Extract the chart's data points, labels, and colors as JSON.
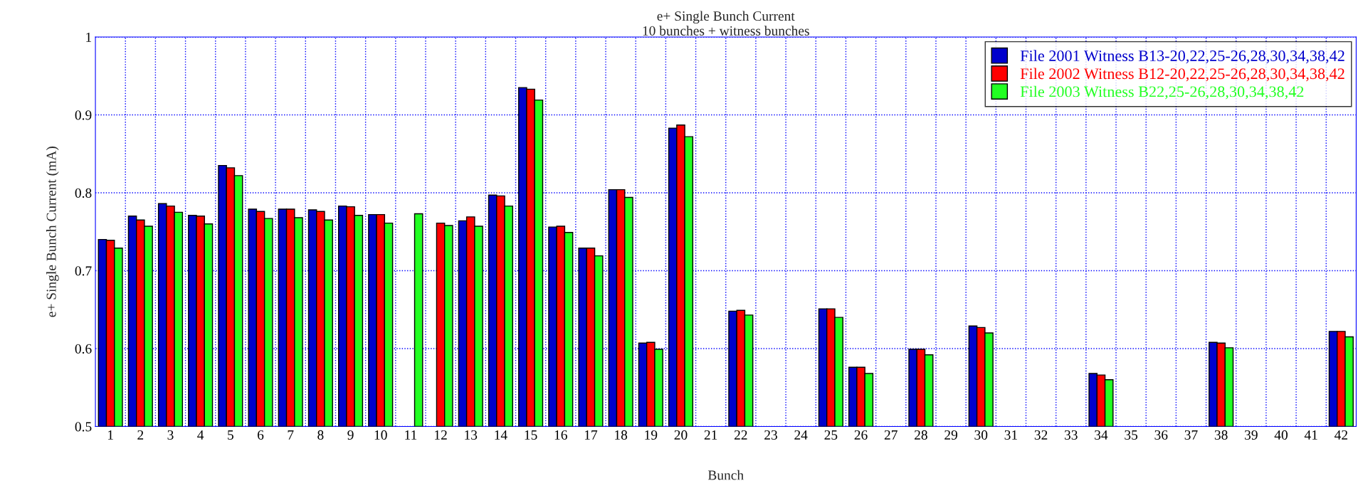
{
  "chart_data": {
    "type": "bar",
    "title": "e+ Single Bunch Current",
    "subtitle": "10 bunches + witness bunches",
    "xlabel": "Bunch",
    "ylabel": "e+ Single Bunch Current (mA)",
    "categories": [
      "1",
      "2",
      "3",
      "4",
      "5",
      "6",
      "7",
      "8",
      "9",
      "10",
      "11",
      "12",
      "13",
      "14",
      "15",
      "16",
      "17",
      "18",
      "19",
      "20",
      "21",
      "22",
      "23",
      "24",
      "25",
      "26",
      "27",
      "28",
      "29",
      "30",
      "31",
      "32",
      "33",
      "34",
      "35",
      "36",
      "37",
      "38",
      "39",
      "40",
      "41",
      "42"
    ],
    "series": [
      {
        "name": "File 2001 Witness B13-20,22,25-26,28,30,34,38,42",
        "color": "#0000cc",
        "values": [
          0.74,
          0.77,
          0.786,
          0.771,
          0.835,
          0.779,
          0.779,
          0.778,
          0.783,
          0.772,
          null,
          null,
          0.764,
          0.797,
          0.935,
          0.756,
          0.729,
          0.804,
          0.607,
          0.883,
          null,
          0.648,
          null,
          null,
          0.651,
          0.576,
          null,
          0.599,
          null,
          0.629,
          null,
          null,
          null,
          0.568,
          null,
          null,
          null,
          0.608,
          null,
          null,
          null,
          0.622
        ]
      },
      {
        "name": "File 2002 Witness B12-20,22,25-26,28,30,34,38,42",
        "color": "#ff0000",
        "values": [
          0.739,
          0.765,
          0.783,
          0.77,
          0.832,
          0.776,
          0.779,
          0.776,
          0.782,
          0.772,
          null,
          0.761,
          0.769,
          0.796,
          0.933,
          0.757,
          0.729,
          0.804,
          0.608,
          0.887,
          null,
          0.649,
          null,
          null,
          0.651,
          0.576,
          null,
          0.599,
          null,
          0.627,
          null,
          null,
          null,
          0.566,
          null,
          null,
          null,
          0.607,
          null,
          null,
          null,
          0.622
        ]
      },
      {
        "name": "File 2003 Witness B22,25-26,28,30,34,38,42",
        "color": "#22ff22",
        "values": [
          0.729,
          0.757,
          0.775,
          0.76,
          0.822,
          0.767,
          0.768,
          0.765,
          0.771,
          0.761,
          0.773,
          0.758,
          0.757,
          0.783,
          0.919,
          0.749,
          0.719,
          0.794,
          0.599,
          0.872,
          null,
          0.643,
          null,
          null,
          0.64,
          0.568,
          null,
          0.592,
          null,
          0.62,
          null,
          null,
          null,
          0.56,
          null,
          null,
          null,
          0.601,
          null,
          null,
          null,
          0.615
        ]
      }
    ],
    "ylim": [
      0.5,
      1
    ],
    "yticks": [
      0.5,
      0.6,
      0.7,
      0.8,
      0.9,
      1
    ],
    "grid": true,
    "legend": "top right"
  }
}
